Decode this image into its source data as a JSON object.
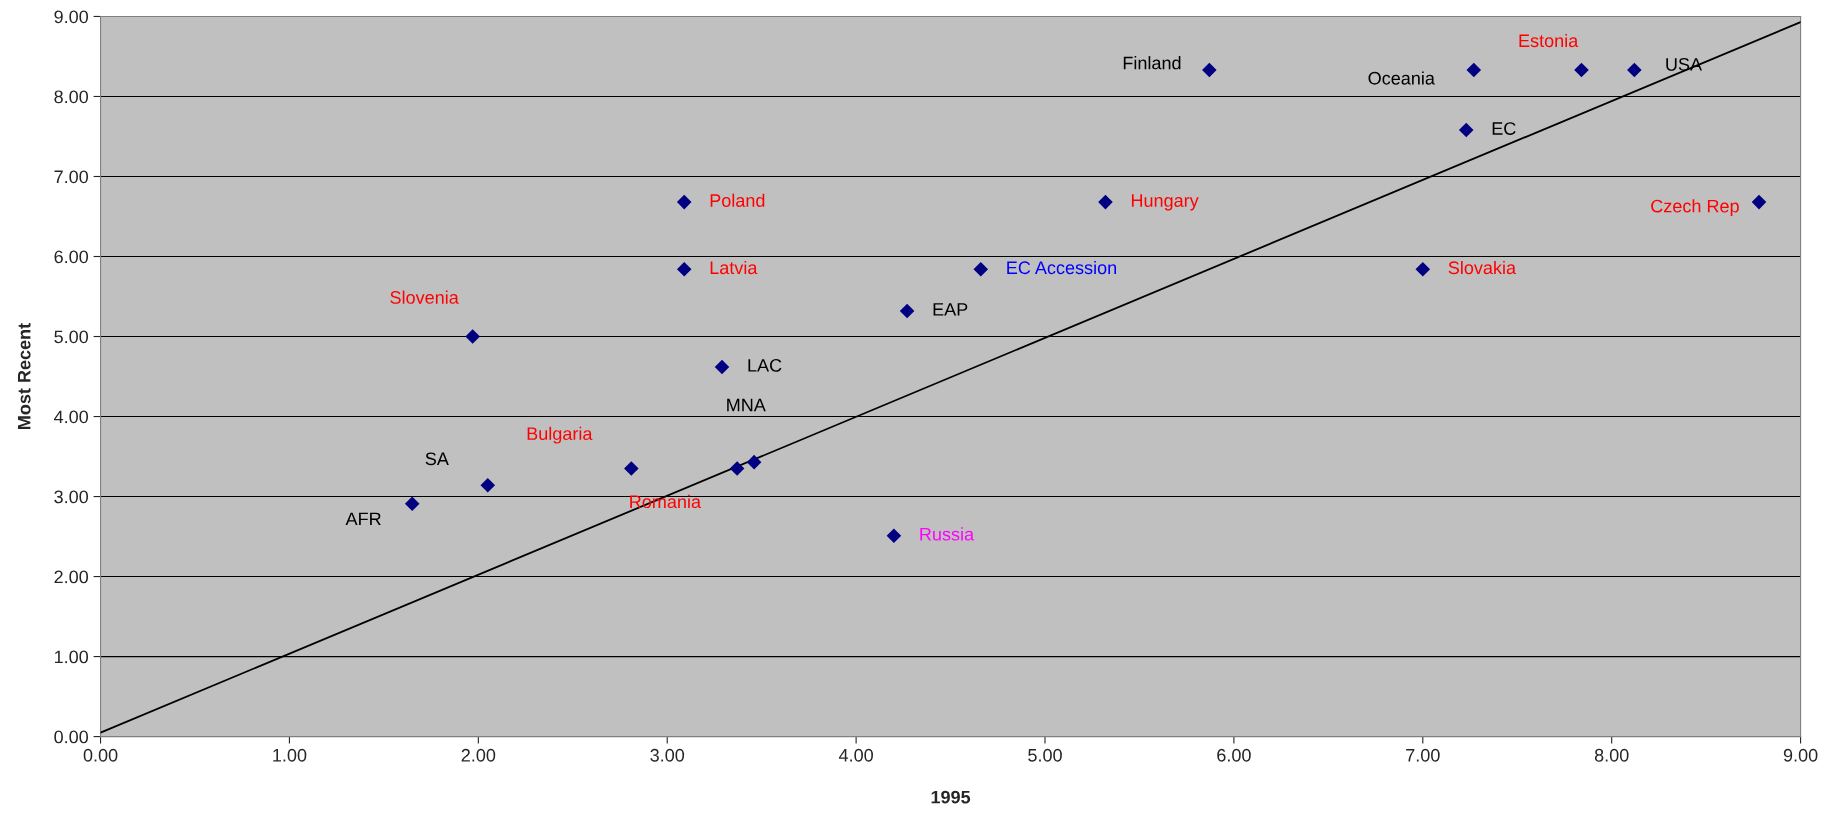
{
  "chart_data": {
    "type": "scatter",
    "xlabel": "1995",
    "ylabel": "Most Recent",
    "xlim": [
      0,
      9
    ],
    "ylim": [
      0,
      9
    ],
    "xticks": [
      {
        "value": 0,
        "label": "0.00"
      },
      {
        "value": 1,
        "label": "1.00"
      },
      {
        "value": 2,
        "label": "2.00"
      },
      {
        "value": 3,
        "label": "3.00"
      },
      {
        "value": 4,
        "label": "4.00"
      },
      {
        "value": 5,
        "label": "5.00"
      },
      {
        "value": 6,
        "label": "6.00"
      },
      {
        "value": 7,
        "label": "7.00"
      },
      {
        "value": 8,
        "label": "8.00"
      },
      {
        "value": 9,
        "label": "9.00"
      }
    ],
    "yticks": [
      {
        "value": 0,
        "label": "0.00"
      },
      {
        "value": 1,
        "label": "1.00"
      },
      {
        "value": 2,
        "label": "2.00"
      },
      {
        "value": 3,
        "label": "3.00"
      },
      {
        "value": 4,
        "label": "4.00"
      },
      {
        "value": 5,
        "label": "5.00"
      },
      {
        "value": 6,
        "label": "6.00"
      },
      {
        "value": 7,
        "label": "7.00"
      },
      {
        "value": 8,
        "label": "8.00"
      },
      {
        "value": 9,
        "label": "9.00"
      }
    ],
    "grid": "y",
    "series": [
      {
        "marker": "diamond",
        "color": "#000080",
        "x": [
          1.65,
          2.05,
          1.97,
          2.81,
          3.37,
          3.46,
          3.29,
          3.09,
          3.09,
          4.27,
          4.2,
          4.66,
          5.32,
          5.87,
          7.0,
          7.23,
          7.27,
          7.84,
          8.12,
          8.78
        ],
        "values": [
          2.91,
          3.14,
          5.0,
          3.35,
          3.35,
          3.43,
          4.62,
          6.68,
          5.84,
          5.32,
          2.51,
          5.84,
          6.68,
          8.33,
          5.84,
          7.58,
          8.33,
          8.33,
          8.33,
          6.68
        ]
      },
      {
        "type": "line",
        "marker": "none",
        "line_style": "solid",
        "color": "#000000",
        "x": [
          0,
          9
        ],
        "values": [
          0.05,
          8.93
        ]
      }
    ],
    "annotations": [
      {
        "text": "AFR",
        "x": 1.65,
        "y": 2.91
      },
      {
        "text": "SA",
        "x": 2.05,
        "y": 3.14
      },
      {
        "text": "Slovenia",
        "x": 1.97,
        "y": 5.0
      },
      {
        "text": "Bulgaria",
        "x": 2.81,
        "y": 3.35
      },
      {
        "text": "Romania",
        "x": 3.37,
        "y": 3.35
      },
      {
        "text": "MNA",
        "x": 3.46,
        "y": 3.43
      },
      {
        "text": "LAC",
        "x": 3.29,
        "y": 4.62
      },
      {
        "text": "Poland",
        "x": 3.09,
        "y": 6.68
      },
      {
        "text": "Latvia",
        "x": 3.09,
        "y": 5.84
      },
      {
        "text": "EAP",
        "x": 4.27,
        "y": 5.32
      },
      {
        "text": "Russia",
        "x": 4.2,
        "y": 2.51
      },
      {
        "text": "EC Accession",
        "x": 4.66,
        "y": 5.84
      },
      {
        "text": "Hungary",
        "x": 5.32,
        "y": 6.68
      },
      {
        "text": "Finland",
        "x": 5.87,
        "y": 8.33
      },
      {
        "text": "Slovakia",
        "x": 7.0,
        "y": 5.84
      },
      {
        "text": "EC",
        "x": 7.23,
        "y": 7.58
      },
      {
        "text": "Oceania",
        "x": 7.27,
        "y": 8.33
      },
      {
        "text": "Estonia",
        "x": 7.84,
        "y": 8.33
      },
      {
        "text": "USA",
        "x": 8.12,
        "y": 8.33
      },
      {
        "text": "Czech Rep",
        "x": 8.78,
        "y": 6.68
      }
    ]
  }
}
